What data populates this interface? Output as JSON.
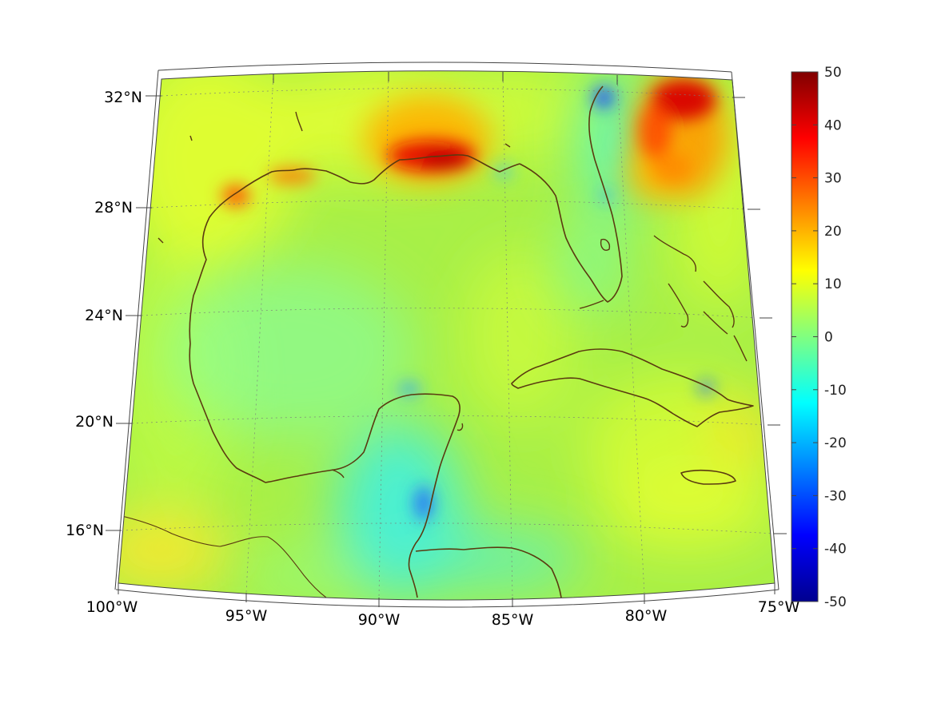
{
  "map": {
    "lat_labels": [
      "32°N",
      "28°N",
      "24°N",
      "20°N",
      "16°N"
    ],
    "lon_labels": [
      "100°W",
      "95°W",
      "90°W",
      "85°W",
      "80°W",
      "75°W"
    ],
    "lon_range": [
      -100,
      -75
    ],
    "lat_range": [
      14,
      33
    ]
  },
  "colorbar": {
    "ticks": [
      "50",
      "40",
      "30",
      "20",
      "10",
      "0",
      "-10",
      "-20",
      "-30",
      "-40",
      "-50"
    ],
    "range": [
      -50,
      50
    ],
    "colormap": "jet"
  },
  "colors": {
    "background_field": "#a8f048",
    "coastline": "#5a3a10"
  }
}
